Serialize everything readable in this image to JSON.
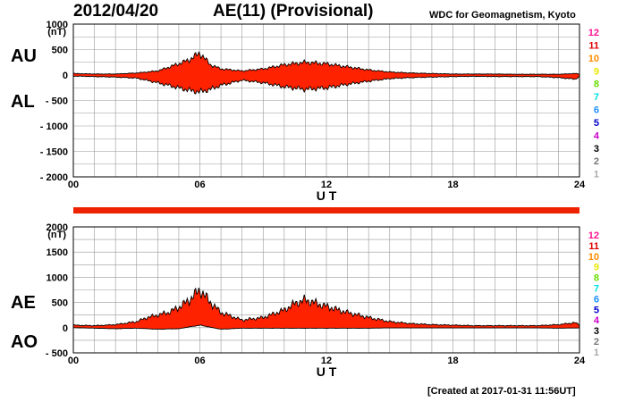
{
  "header": {
    "date": "2012/04/20",
    "title": "AE(11) (Provisional)",
    "source": "WDC for Geomagnetism, Kyoto"
  },
  "footer": {
    "created": "[Created at 2017-01-31 11:56UT]"
  },
  "labels": {
    "au": "AU",
    "al": "AL",
    "ae": "AE",
    "ao": "AO"
  },
  "station_legend": {
    "numbers": [
      "12",
      "11",
      "10",
      "9",
      "8",
      "7",
      "6",
      "5",
      "4",
      "3",
      "2",
      "1"
    ],
    "colors": [
      "#ff1493",
      "#e00000",
      "#ff8c00",
      "#e8e800",
      "#66dd00",
      "#00e0e0",
      "#1e90ff",
      "#0000cc",
      "#cc00cc",
      "#000000",
      "#777777",
      "#aaaaaa"
    ]
  },
  "colors": {
    "fill": "#ff2200",
    "bar": "#ee2200",
    "grid": "#999999",
    "line": "#000000"
  },
  "chart_data": [
    {
      "type": "area",
      "panel": "AU/AL",
      "unit_label": "(nT)",
      "xlabel": "U T",
      "xlim": [
        0,
        24
      ],
      "ylim": [
        -2000,
        1000
      ],
      "xticks": [
        0,
        6,
        12,
        18,
        24
      ],
      "xtick_labels": [
        "00",
        "06",
        "12",
        "18",
        "24"
      ],
      "yticks": [
        1000,
        500,
        0,
        -500,
        -1000,
        -1500,
        -2000
      ],
      "ytick_labels": [
        "1000",
        "500",
        "0",
        "- 500",
        "- 1000",
        "- 1500",
        "- 2000"
      ],
      "grid": true,
      "series": [
        {
          "name": "AU",
          "x": [
            0,
            1,
            2,
            3,
            4,
            4.5,
            5,
            5.5,
            6,
            6.5,
            7,
            8,
            9,
            10,
            11,
            12,
            13,
            14,
            15,
            16,
            17,
            18,
            19,
            20,
            21,
            22,
            23,
            23.8,
            24
          ],
          "values": [
            30,
            20,
            20,
            40,
            80,
            150,
            220,
            300,
            430,
            200,
            120,
            80,
            120,
            200,
            250,
            220,
            160,
            100,
            60,
            40,
            30,
            20,
            20,
            20,
            15,
            15,
            15,
            30,
            20
          ]
        },
        {
          "name": "AL",
          "x": [
            0,
            1,
            2,
            3,
            4,
            4.5,
            5,
            5.5,
            6,
            6.5,
            7,
            8,
            9,
            10,
            11,
            12,
            13,
            14,
            15,
            16,
            17,
            18,
            19,
            20,
            21,
            22,
            23,
            23.8,
            24
          ],
          "values": [
            -20,
            -30,
            -40,
            -60,
            -150,
            -200,
            -250,
            -300,
            -330,
            -280,
            -200,
            -100,
            -150,
            -230,
            -280,
            -250,
            -180,
            -120,
            -70,
            -50,
            -40,
            -30,
            -25,
            -30,
            -30,
            -30,
            -50,
            -80,
            -30
          ]
        }
      ]
    },
    {
      "type": "area",
      "panel": "AE/AO",
      "unit_label": "(nT)",
      "xlabel": "U T",
      "xlim": [
        0,
        24
      ],
      "ylim": [
        -500,
        2000
      ],
      "xticks": [
        0,
        6,
        12,
        18,
        24
      ],
      "xtick_labels": [
        "00",
        "06",
        "12",
        "18",
        "24"
      ],
      "yticks": [
        2000,
        1500,
        1000,
        500,
        0,
        -500
      ],
      "ytick_labels": [
        "2000",
        "1500",
        "1000",
        "500",
        "0",
        "- 500"
      ],
      "grid": true,
      "series": [
        {
          "name": "AE",
          "x": [
            0,
            1,
            2,
            3,
            3.5,
            4,
            4.5,
            5,
            5.5,
            6,
            6.5,
            7,
            8,
            9,
            10,
            10.5,
            11,
            12,
            13,
            14,
            15,
            16,
            17,
            18,
            19,
            20,
            21,
            22,
            23,
            23.8,
            24
          ],
          "values": [
            50,
            40,
            60,
            120,
            200,
            250,
            300,
            400,
            550,
            750,
            500,
            300,
            150,
            200,
            350,
            480,
            550,
            420,
            300,
            200,
            120,
            80,
            60,
            50,
            40,
            40,
            40,
            40,
            60,
            100,
            50
          ]
        },
        {
          "name": "AO",
          "x": [
            0,
            1,
            2,
            3,
            4,
            5,
            6,
            7,
            8,
            9,
            10,
            11,
            12,
            13,
            14,
            15,
            16,
            17,
            18,
            19,
            20,
            21,
            22,
            23,
            24
          ],
          "values": [
            0,
            -10,
            -20,
            -10,
            -30,
            -20,
            50,
            -30,
            -10,
            -10,
            -10,
            -10,
            -10,
            -10,
            -10,
            -5,
            -5,
            -5,
            -5,
            -5,
            -5,
            -5,
            -5,
            -10,
            -5
          ]
        }
      ]
    }
  ]
}
